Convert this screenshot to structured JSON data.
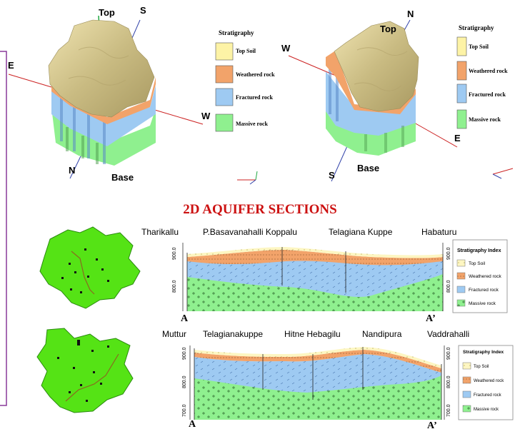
{
  "block_left": {
    "labels": {
      "top": "Top",
      "s": "S",
      "e": "E",
      "w": "W",
      "n": "N",
      "base": "Base"
    },
    "legend_title": "Stratigraphy",
    "legend": [
      "Top Soil",
      "Weathered rock",
      "Fractured rock",
      "Massive rock"
    ]
  },
  "block_right": {
    "labels": {
      "top": "Top",
      "n": "N",
      "w": "W",
      "e": "E",
      "s": "S",
      "base": "Base"
    },
    "legend_title": "Stratigraphy",
    "legend": [
      "Top Soil",
      "Weathered rock",
      "Fractured rock",
      "Massive rock"
    ]
  },
  "section_title": "2D AQUIFER SECTIONS",
  "section1": {
    "places": [
      "Tharikallu",
      "P.Basavanahalli Koppalu",
      "Telagiana Kuppe",
      "Habaturu"
    ],
    "y_ticks": [
      "900.0",
      "800.0"
    ],
    "end_left": "A",
    "end_right": "A’",
    "legend_title": "Stratigraphy Index",
    "legend": [
      "Top Soil",
      "Weathered rock",
      "Fractured rock",
      "Massive rock"
    ]
  },
  "section2": {
    "places": [
      "Muttur",
      "Telagianakuppe",
      "Hitne Hebagilu",
      "Nandipura",
      "Vaddrahalli"
    ],
    "y_ticks": [
      "900.0",
      "800.0",
      "700.0"
    ],
    "end_left": "A",
    "end_right": "A’",
    "legend_title": "Stratigraphy Index",
    "legend": [
      "Top Soil",
      "Weathered rock",
      "Fractured rock",
      "Massive rock"
    ]
  },
  "colors": {
    "top_soil": "#fdf3a6",
    "weathered": "#f2a36a",
    "fractured": "#9ecaf2",
    "massive": "#8ff08f",
    "map_green": "#55e315",
    "title_red": "#cc1111"
  }
}
